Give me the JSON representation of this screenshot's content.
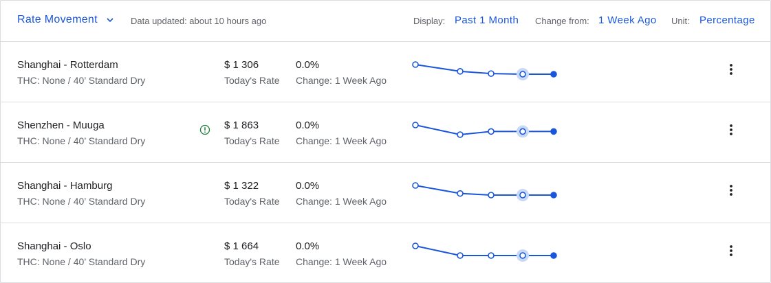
{
  "header": {
    "title": "Rate Movement",
    "updated": "Data updated: about 10 hours ago",
    "display_label": "Display:",
    "display_value": "Past 1 Month",
    "change_label": "Change from:",
    "change_value": "1 Week Ago",
    "unit_label": "Unit:",
    "unit_value": "Percentage"
  },
  "colors": {
    "accent": "#1a56db",
    "warning": "#188038",
    "highlight": "#c8d9f5"
  },
  "rows": [
    {
      "route": "Shanghai - Rotterdam",
      "thc": "THC: None / 40’ Standard Dry",
      "warning": false,
      "price": "$ 1 306",
      "price_label": "Today's Rate",
      "change": "0.0%",
      "change_label": "Change: 1 Week Ago",
      "trend": [
        1370,
        1325,
        1310,
        1306,
        1306
      ]
    },
    {
      "route": "Shenzhen - Muuga",
      "thc": "THC: None / 40’ Standard Dry",
      "warning": true,
      "price": "$ 1 863",
      "price_label": "Today's Rate",
      "change": "0.0%",
      "change_label": "Change: 1 Week Ago",
      "trend": [
        1900,
        1845,
        1863,
        1863,
        1863
      ]
    },
    {
      "route": "Shanghai - Hamburg",
      "thc": "THC: None / 40’ Standard Dry",
      "warning": false,
      "price": "$ 1 322",
      "price_label": "Today's Rate",
      "change": "0.0%",
      "change_label": "Change: 1 Week Ago",
      "trend": [
        1370,
        1330,
        1322,
        1322,
        1322
      ]
    },
    {
      "route": "Shanghai - Oslo",
      "thc": "THC: None / 40’ Standard Dry",
      "warning": false,
      "price": "$ 1 664",
      "price_label": "Today's Rate",
      "change": "0.0%",
      "change_label": "Change: 1 Week Ago",
      "trend": [
        1705,
        1664,
        1664,
        1664,
        1664
      ]
    }
  ]
}
